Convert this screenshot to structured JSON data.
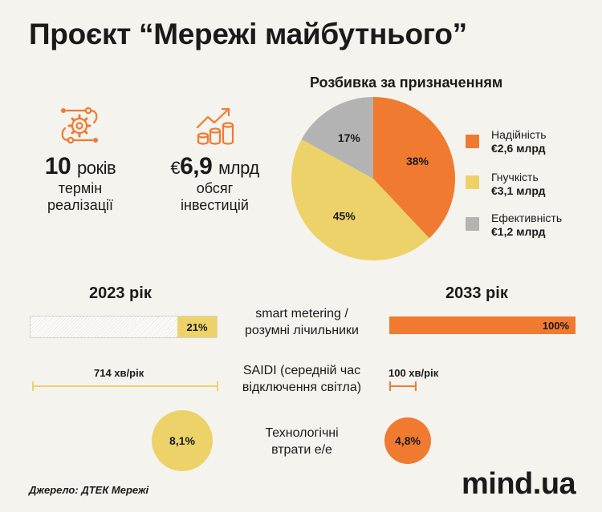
{
  "title": "Проєкт “Мережі майбутнього”",
  "stats": [
    {
      "number": "10",
      "unit": "років",
      "label_line1": "термін",
      "label_line2": "реалізації",
      "icon": "gear-network-icon"
    },
    {
      "currency": "€",
      "number": "6,9",
      "unit": "млрд",
      "label_line1": "обсяг",
      "label_line2": "інвестицій",
      "icon": "coins-growth-icon"
    }
  ],
  "chart_data": [
    {
      "type": "pie",
      "title": "Розбивка за призначенням",
      "slices": [
        {
          "name": "Надійність",
          "amount": "€2,6 млрд",
          "value": 38,
          "label": "38%",
          "color": "#f07a2f"
        },
        {
          "name": "Гнучкість",
          "amount": "€3,1 млрд",
          "value": 45,
          "label": "45%",
          "color": "#edd26a"
        },
        {
          "name": "Ефективність",
          "amount": "€1,2 млрд",
          "value": 17,
          "label": "17%",
          "color": "#b3b3b3"
        }
      ],
      "legend_position": "right"
    },
    {
      "type": "bar",
      "categories": [
        "2023 рік",
        "2033 рік"
      ],
      "metric": "smart metering / розумні лічильники",
      "values": [
        21,
        100
      ],
      "labels": [
        "21%",
        "100%"
      ],
      "max": 100,
      "colors": [
        "#edd26a",
        "#f07a2f"
      ]
    },
    {
      "type": "bar",
      "categories": [
        "2023 рік",
        "2033 рік"
      ],
      "metric": "SAIDI (середній час відключення світла)",
      "values": [
        714,
        100
      ],
      "labels": [
        "714 хв/рік",
        "100 хв/рік"
      ],
      "unit": "хв/рік"
    },
    {
      "type": "bubble",
      "categories": [
        "2023 рік",
        "2033 рік"
      ],
      "metric": "Технологічні втрати е/е",
      "values": [
        8.1,
        4.8
      ],
      "labels": [
        "8,1%",
        "4,8%"
      ],
      "colors": [
        "#edd26a",
        "#f07a2f"
      ]
    }
  ],
  "comparison": {
    "year_left": "2023 рік",
    "year_right": "2033 рік",
    "metrics": [
      {
        "line1": "smart metering /",
        "line2": "розумні лічильники"
      },
      {
        "line1": "SAIDI (середній час",
        "line2": "відключення світла)"
      },
      {
        "line1": "Технологічні",
        "line2": "втрати е/е"
      }
    ]
  },
  "source": "Джерело: ДТЕК Мережі",
  "brand": "mind.ua",
  "colors": {
    "orange": "#f07a2f",
    "yellow": "#edd26a",
    "gray": "#b3b3b3",
    "background": "#f5f3ee"
  }
}
